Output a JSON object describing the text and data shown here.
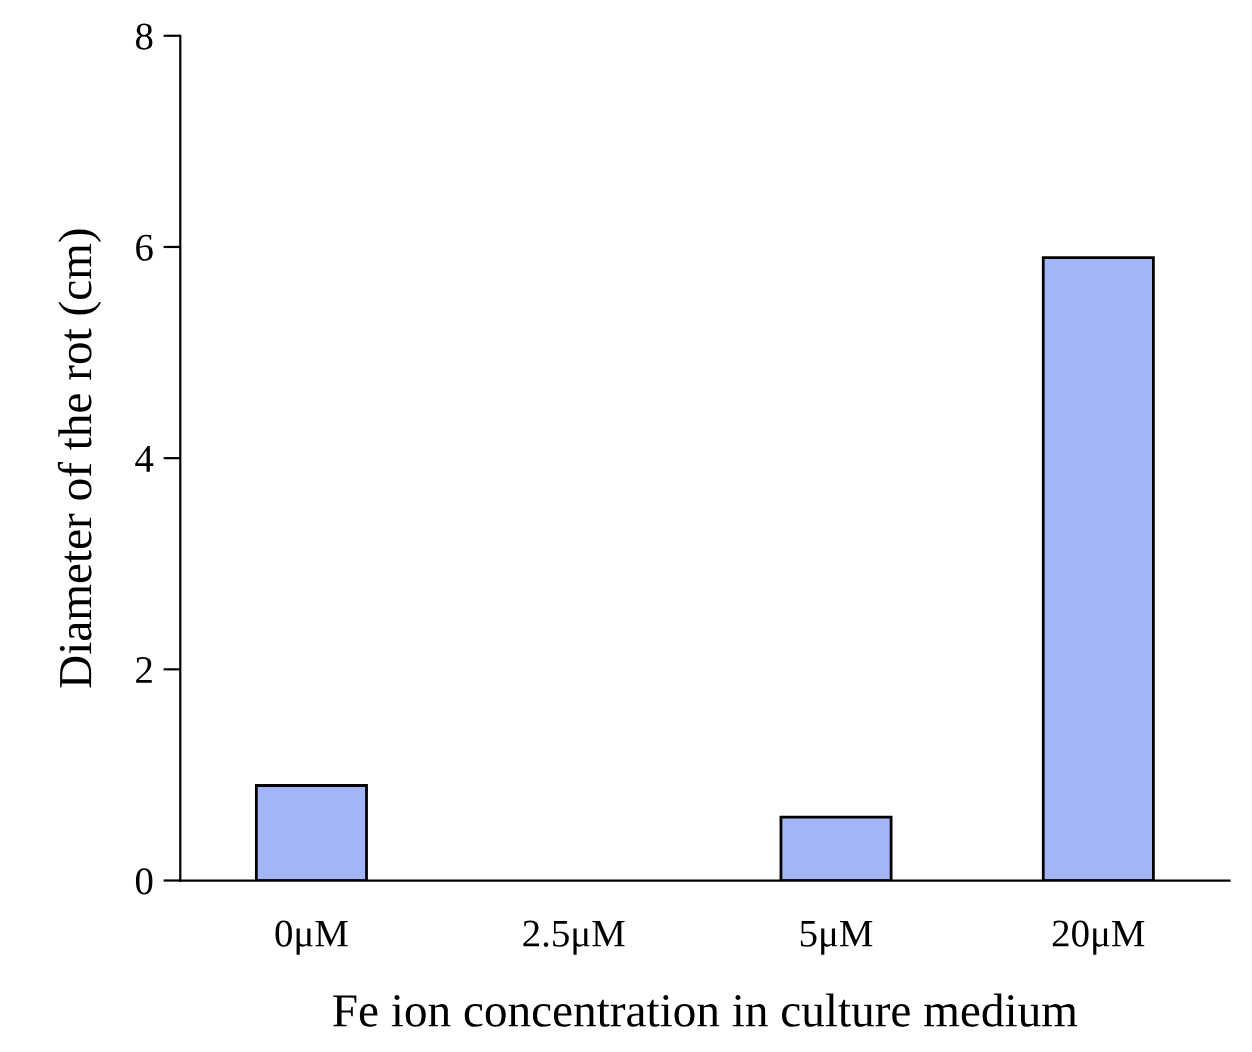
{
  "chart_data": {
    "type": "bar",
    "xlabel": "Fe ion concentration in culture medium",
    "ylabel": "Diameter of the rot (cm)",
    "categories": [
      "0μM",
      "2.5μM",
      "5μM",
      "20μM"
    ],
    "values": [
      0.9,
      0,
      0.6,
      5.9
    ],
    "color": "#a3b4f7",
    "ylim": [
      0,
      8
    ],
    "yticks": [
      0,
      2,
      4,
      6,
      8
    ],
    "grid": false,
    "legend": false
  }
}
